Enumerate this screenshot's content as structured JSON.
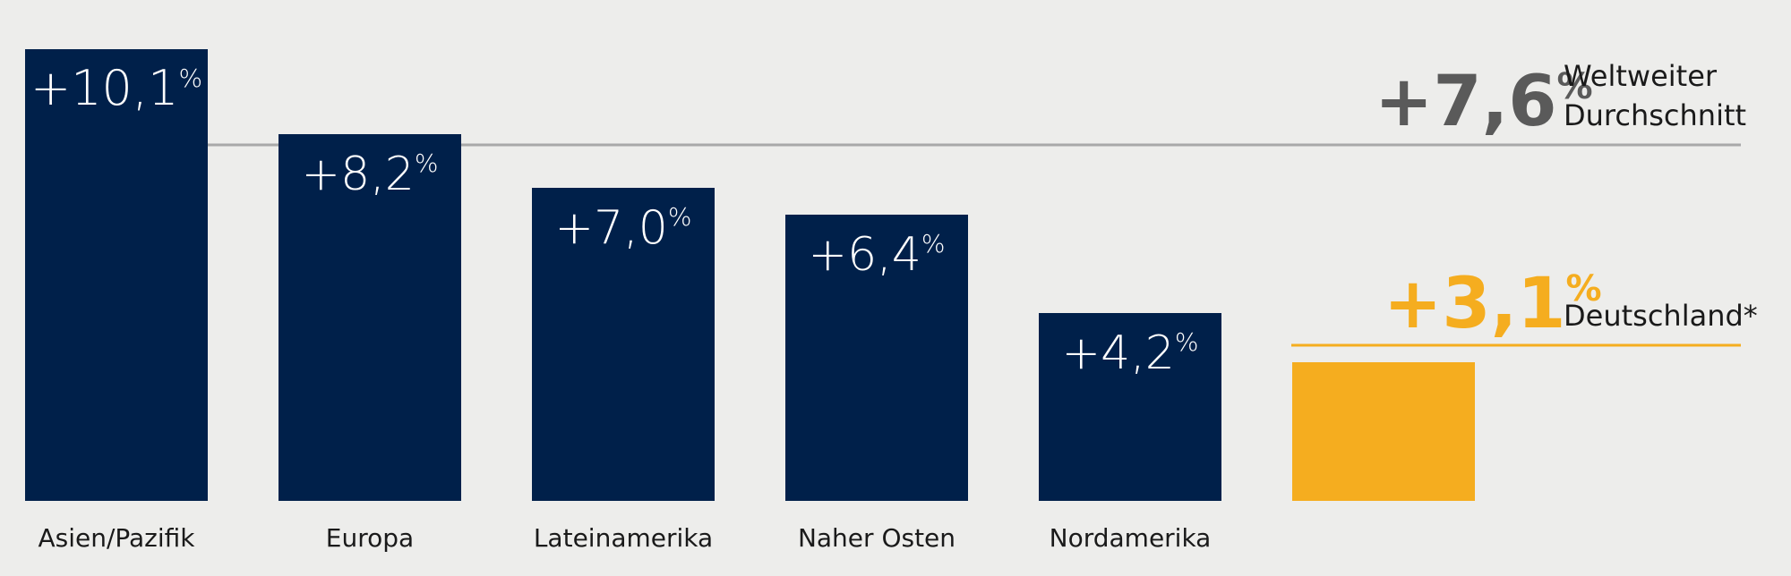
{
  "chart_data": {
    "type": "bar",
    "categories": [
      "Asien/Pazifik",
      "Europa",
      "Lateinamerika",
      "Naher Osten",
      "Nordamerika",
      ""
    ],
    "values": [
      10.1,
      8.2,
      7.0,
      6.4,
      4.2,
      3.1
    ],
    "value_labels": [
      "+10,1",
      "+8,2",
      "+7,0",
      "+6,4",
      "+4,2",
      "+3,1"
    ],
    "value_suffix": "%",
    "ylim": [
      0,
      10.6
    ],
    "title": "",
    "xlabel": "",
    "ylabel": "",
    "references": [
      {
        "value": 7.6,
        "value_label": "+7,6",
        "label_lines": [
          "Weltweiter",
          "Durchschnitt"
        ],
        "color": "#5a5a5a",
        "line_color": "#a8a8a8"
      },
      {
        "value": 3.1,
        "value_label": "+3,1",
        "label_lines": [
          "Deutschland*"
        ],
        "color": "#f5ad1f",
        "line_color": "#f5ad1f"
      }
    ],
    "bar_colors": [
      "#00204a",
      "#00204a",
      "#00204a",
      "#00204a",
      "#00204a",
      "#f5ad1f"
    ],
    "background": "#ededeb",
    "grid": false,
    "legend": "none"
  }
}
